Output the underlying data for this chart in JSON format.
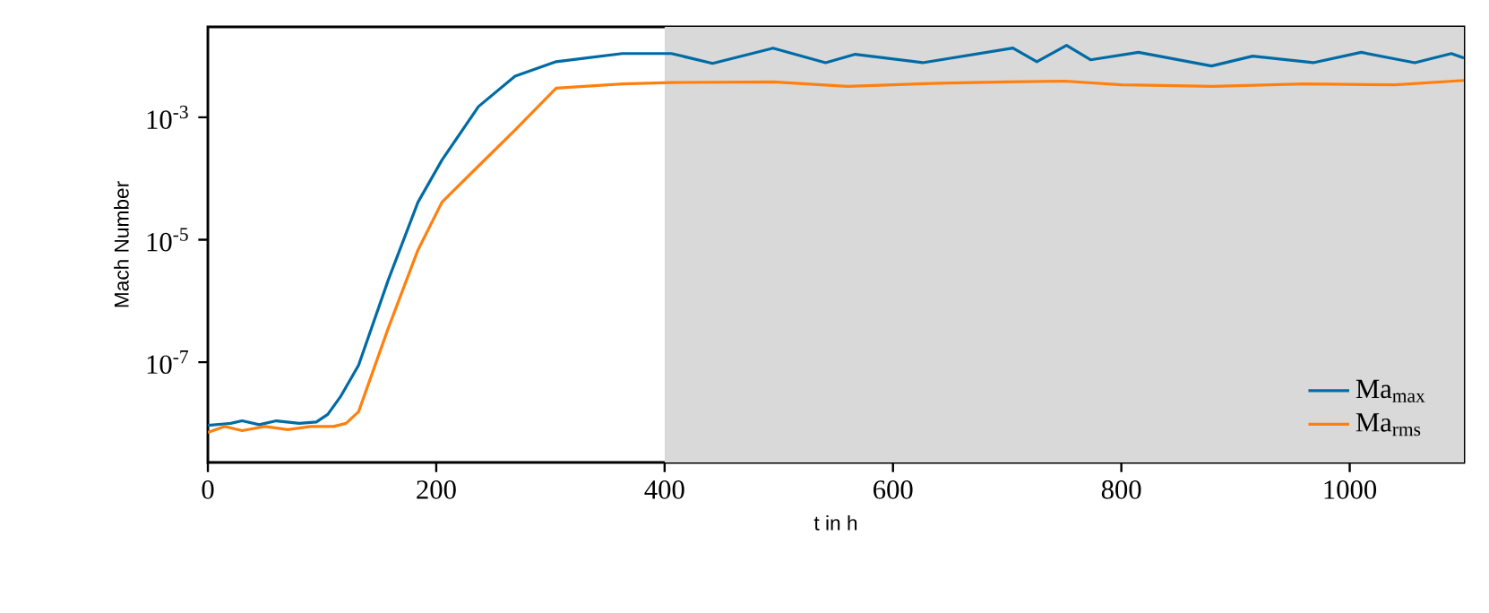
{
  "chart_data": {
    "type": "line",
    "xlabel": "t in h",
    "ylabel": "Mach Number",
    "log": "y",
    "xlim": [
      0,
      1100
    ],
    "xticks": [
      0,
      200,
      400,
      600,
      800,
      1000
    ],
    "ylim": [
      2.3e-09,
      0.03
    ],
    "yticks": [
      {
        "value": 1e-07,
        "label": "10$^{-7}$"
      },
      {
        "value": 1e-05,
        "label": "10$^{-5}$"
      },
      {
        "value": 0.001,
        "label": "10$^{-3}$"
      }
    ],
    "grid": false,
    "legend": "bottom right",
    "bands": [
      {
        "axis": "x",
        "from": 400,
        "to": 1100,
        "color": "#d9d9d9"
      }
    ],
    "series": [
      {
        "name": "Ma$_{max}$",
        "color": "#006ba4",
        "x": [
          0,
          20,
          30,
          45,
          60,
          80,
          95,
          105,
          116,
          132,
          158,
          184,
          205,
          237,
          269,
          305,
          335,
          363,
          406,
          442,
          495,
          541,
          567,
          626,
          705,
          726,
          752,
          773,
          815,
          879,
          915,
          968,
          1010,
          1057,
          1089,
          1100
        ],
        "values": [
          9.3e-09,
          1e-08,
          1.1e-08,
          9.5e-09,
          1.1e-08,
          1e-08,
          1.05e-08,
          1.4e-08,
          2.7e-08,
          8.9e-08,
          2.2e-06,
          4.1e-05,
          0.0002,
          0.0015,
          0.0047,
          0.0081,
          0.0095,
          0.011,
          0.011,
          0.0076,
          0.0135,
          0.0078,
          0.0107,
          0.0078,
          0.0135,
          0.0081,
          0.015,
          0.0087,
          0.0115,
          0.0069,
          0.01,
          0.0078,
          0.0115,
          0.0078,
          0.011,
          0.0093
        ]
      },
      {
        "name": "Ma$_{rms}$",
        "color": "#ff800e",
        "x": [
          0,
          15,
          30,
          50,
          70,
          90,
          110,
          121,
          132,
          158,
          184,
          205,
          237,
          269,
          305,
          363,
          406,
          495,
          560,
          640,
          700,
          750,
          800,
          880,
          960,
          1040,
          1100
        ],
        "values": [
          7.1e-09,
          8.9e-09,
          7.6e-09,
          8.9e-09,
          7.9e-09,
          8.9e-09,
          8.9e-09,
          1e-08,
          1.55e-08,
          3.6e-07,
          6.8e-06,
          4.1e-05,
          0.00016,
          0.00062,
          0.003,
          0.0035,
          0.0037,
          0.0038,
          0.0032,
          0.0036,
          0.0038,
          0.0039,
          0.0034,
          0.0032,
          0.0035,
          0.0034,
          0.004
        ]
      }
    ]
  }
}
